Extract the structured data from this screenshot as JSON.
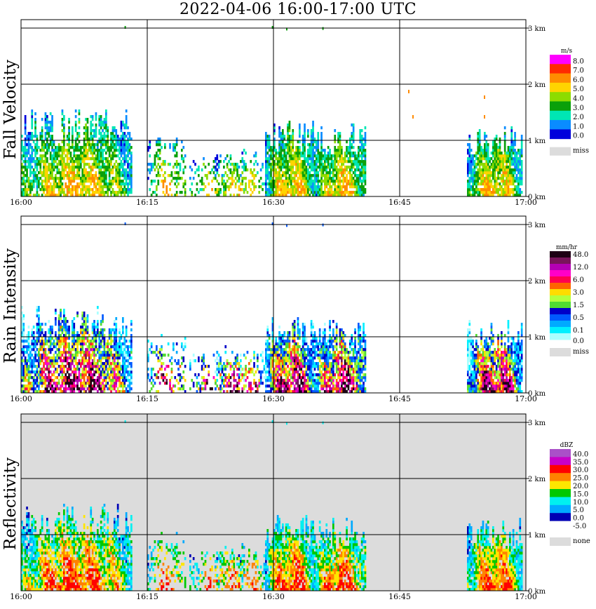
{
  "title": "2022-04-06  16:00-17:00 UTC",
  "x_ticks": [
    "16:00",
    "16:15",
    "16:30",
    "16:45",
    "17:00"
  ],
  "y_ticks": [
    "0 km",
    "1 km",
    "2 km",
    "3 km"
  ],
  "panels": [
    {
      "ylabel": "Fall Velocity",
      "units": "m/s",
      "bg": "#ffffff",
      "legend": [
        {
          "label": "8.0",
          "color": "#ff00ff"
        },
        {
          "label": "7.0",
          "color": "#ff2a00"
        },
        {
          "label": "6.0",
          "color": "#ff8c00"
        },
        {
          "label": "5.0",
          "color": "#ffd400"
        },
        {
          "label": "4.0",
          "color": "#8cdc00"
        },
        {
          "label": "3.0",
          "color": "#0aa00a"
        },
        {
          "label": "2.0",
          "color": "#00e6b4"
        },
        {
          "label": "1.0",
          "color": "#0a8cff"
        },
        {
          "label": "0.0",
          "color": "#0000dc"
        }
      ],
      "miss_label": "miss"
    },
    {
      "ylabel": "Rain Intensity",
      "units": "mm/hr",
      "bg": "#ffffff",
      "legend": [
        {
          "label": "48.0",
          "color": "#1e0014"
        },
        {
          "label": "",
          "color": "#78145a"
        },
        {
          "label": "12.0",
          "color": "#b400b4"
        },
        {
          "label": "",
          "color": "#ff00c8"
        },
        {
          "label": "6.0",
          "color": "#ff0050"
        },
        {
          "label": "",
          "color": "#ff6400"
        },
        {
          "label": "3.0",
          "color": "#ffdc00"
        },
        {
          "label": "",
          "color": "#b4ff3c"
        },
        {
          "label": "1.5",
          "color": "#50dc32"
        },
        {
          "label": "",
          "color": "#0000c8"
        },
        {
          "label": "0.5",
          "color": "#005aff"
        },
        {
          "label": "",
          "color": "#00aaff"
        },
        {
          "label": "0.1",
          "color": "#00f0ff"
        },
        {
          "label": "",
          "color": "#aaffff"
        }
      ],
      "bottom_label": "0.0",
      "miss_label": "miss"
    },
    {
      "ylabel": "Reflectivity",
      "units": "dBZ",
      "bg": "#dcdcdc",
      "legend": [
        {
          "label": "40.0",
          "color": "#aa50c8"
        },
        {
          "label": "35.0",
          "color": "#c800c8"
        },
        {
          "label": "30.0",
          "color": "#ff0000"
        },
        {
          "label": "25.0",
          "color": "#ff8200"
        },
        {
          "label": "20.0",
          "color": "#ffe600"
        },
        {
          "label": "15.0",
          "color": "#00c800"
        },
        {
          "label": "10.0",
          "color": "#00f0f0"
        },
        {
          "label": "5.0",
          "color": "#00aaff"
        },
        {
          "label": "0.0",
          "color": "#0000b4"
        },
        {
          "label": "-5.0",
          "color": "#ffffff"
        }
      ],
      "miss_label": "none"
    }
  ],
  "chart_data": {
    "type": "heatmap",
    "title": "2022-04-06  16:00-17:00 UTC",
    "x_range": [
      "16:00",
      "17:00"
    ],
    "y_range_km": [
      0,
      3.2
    ],
    "variables": [
      "Fall Velocity (m/s)",
      "Rain Intensity (mm/hr)",
      "Reflectivity (dBZ)"
    ],
    "precipitation_cells": [
      {
        "start": "16:00",
        "end": "16:13",
        "top_km": 1.6
      },
      {
        "start": "16:15",
        "end": "16:26",
        "top_km": 1.0
      },
      {
        "start": "16:23",
        "end": "16:29",
        "top_km": 0.9
      },
      {
        "start": "16:29",
        "end": "16:41",
        "top_km": 1.4
      },
      {
        "start": "16:53",
        "end": "16:59",
        "top_km": 1.3
      }
    ],
    "grid": true
  }
}
